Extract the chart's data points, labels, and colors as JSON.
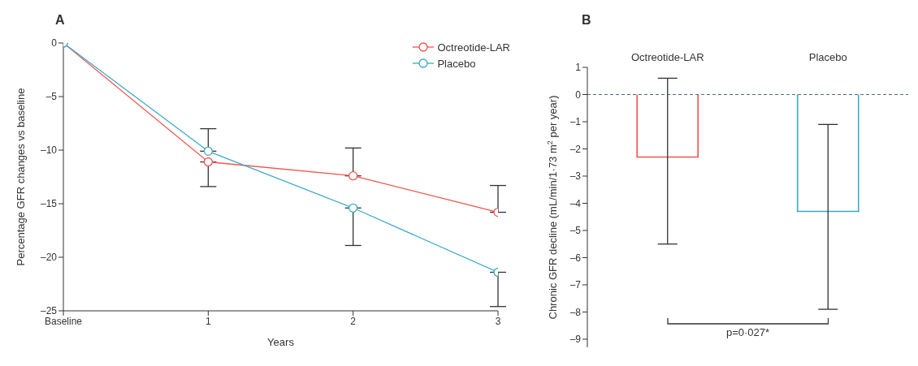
{
  "chart_data": [
    {
      "type": "line",
      "title": "A",
      "xlabel": "Years",
      "ylabel": "Percentage GFR changes vs baseline",
      "categories": [
        "Baseline",
        "1",
        "2",
        "3"
      ],
      "ylim": [
        -25,
        0
      ],
      "yticks": [
        {
          "value": 0,
          "label": "0"
        },
        {
          "value": -5,
          "label": "–5"
        },
        {
          "value": -10,
          "label": "–10"
        },
        {
          "value": -15,
          "label": "–15"
        },
        {
          "value": -20,
          "label": "–20"
        },
        {
          "value": -25,
          "label": "–25"
        }
      ],
      "marker": "circle",
      "legend": "top right",
      "grid": false,
      "series": [
        {
          "name": "Octreotide-LAR",
          "color": "#f0544e",
          "values": [
            0,
            -11.1,
            -12.4,
            -15.8
          ],
          "errors": [
            null,
            [
              -13.4,
              -11.1
            ],
            [
              -12.4,
              -9.8
            ],
            [
              -15.8,
              -13.3
            ]
          ]
        },
        {
          "name": "Placebo",
          "color": "#3aa9c9",
          "values": [
            0,
            -10.1,
            -15.4,
            -21.4
          ],
          "errors": [
            null,
            [
              -10.1,
              -8.0
            ],
            [
              -18.9,
              -15.4
            ],
            [
              -24.6,
              -21.4
            ]
          ]
        }
      ]
    },
    {
      "type": "bar",
      "title": "B",
      "ylabel": "Chronic GFR decline (mL/min/1·73 m$^{2}$ per year)",
      "categories": [
        "Octreotide-LAR",
        "Placebo"
      ],
      "values": [
        -2.3,
        -4.3
      ],
      "colors": [
        "#f0544e",
        "#3aa9c9"
      ],
      "errors": [
        [
          -5.5,
          0.6
        ],
        [
          -7.9,
          -1.1
        ]
      ],
      "ylim": [
        -9.3,
        1
      ],
      "yticks": [
        {
          "value": 1,
          "label": "1"
        },
        {
          "value": 0,
          "label": "0"
        },
        {
          "value": -1,
          "label": "–1"
        },
        {
          "value": -2,
          "label": "–2"
        },
        {
          "value": -3,
          "label": "–3"
        },
        {
          "value": -4,
          "label": "–4"
        },
        {
          "value": -5,
          "label": "–5"
        },
        {
          "value": -6,
          "label": "–6"
        },
        {
          "value": -7,
          "label": "–7"
        },
        {
          "value": -8,
          "label": "–8"
        },
        {
          "value": -9,
          "label": "–9"
        }
      ],
      "ref_lines": [
        {
          "axis": "y",
          "value": 0,
          "color": "#4d6b80",
          "line_style": "dashed"
        }
      ],
      "annotations": [
        "p=0·027*"
      ],
      "legend": false,
      "grid": false
    }
  ]
}
